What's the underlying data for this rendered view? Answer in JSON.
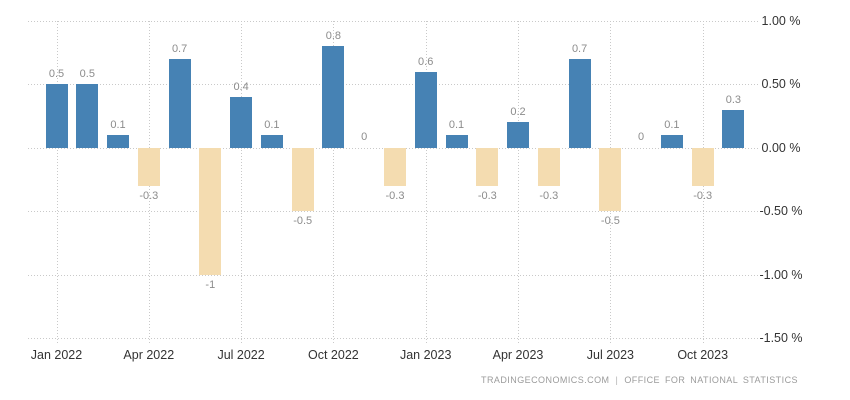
{
  "chart_data": {
    "type": "bar",
    "x": [
      "Jan 2022",
      "Feb 2022",
      "Mar 2022",
      "Apr 2022",
      "May 2022",
      "Jun 2022",
      "Jul 2022",
      "Aug 2022",
      "Sep 2022",
      "Oct 2022",
      "Nov 2022",
      "Dec 2022",
      "Jan 2023",
      "Feb 2023",
      "Mar 2023",
      "Apr 2023",
      "May 2023",
      "Jun 2023",
      "Jul 2023",
      "Aug 2023",
      "Sep 2023",
      "Oct 2023",
      "Nov 2023"
    ],
    "values": [
      0.5,
      0.5,
      0.1,
      -0.3,
      0.7,
      -1,
      0.4,
      0.1,
      -0.5,
      0.8,
      0,
      -0.3,
      0.6,
      0.1,
      -0.3,
      0.2,
      -0.3,
      0.7,
      -0.5,
      0,
      0.1,
      -0.3,
      0.3
    ],
    "bar_labels": [
      "0.5",
      "0.5",
      "0.1",
      "-0.3",
      "0.7",
      "-1",
      "0.4",
      "0.1",
      "-0.5",
      "0.8",
      "0",
      "-0.3",
      "0.6",
      "0.1",
      "-0.3",
      "0.2",
      "-0.3",
      "0.7",
      "-0.5",
      "0",
      "0.1",
      "-0.3",
      "0.3"
    ],
    "x_tick_labels": [
      "Jan 2022",
      "Apr 2022",
      "Jul 2022",
      "Oct 2022",
      "Jan 2023",
      "Apr 2023",
      "Jul 2023",
      "Oct 2023"
    ],
    "x_tick_month_indices": [
      0,
      3,
      6,
      9,
      12,
      15,
      18,
      21
    ],
    "y_tick_labels": [
      "1.00 %",
      "0.50 %",
      "0.00 %",
      "-0.50 %",
      "-1.00 %",
      "-1.50 %"
    ],
    "y_tick_values": [
      1.0,
      0.5,
      0.0,
      -0.5,
      -1.0,
      -1.5
    ],
    "ylim": [
      -1.5,
      1.0
    ],
    "unit": "%",
    "grid": "dotted",
    "legend_position": "none",
    "colors": {
      "positive_bar": "#4682b4",
      "negative_bar": "#f4dcb0",
      "value_label": "#8c8c8c",
      "axis_label": "#333333",
      "gridline": "#c9c9c9",
      "footer_text": "#9b9b9b"
    }
  },
  "footer": {
    "left": "TRADINGECONOMICS.COM",
    "separator": "|",
    "right": "OFFICE FOR NATIONAL STATISTICS"
  }
}
